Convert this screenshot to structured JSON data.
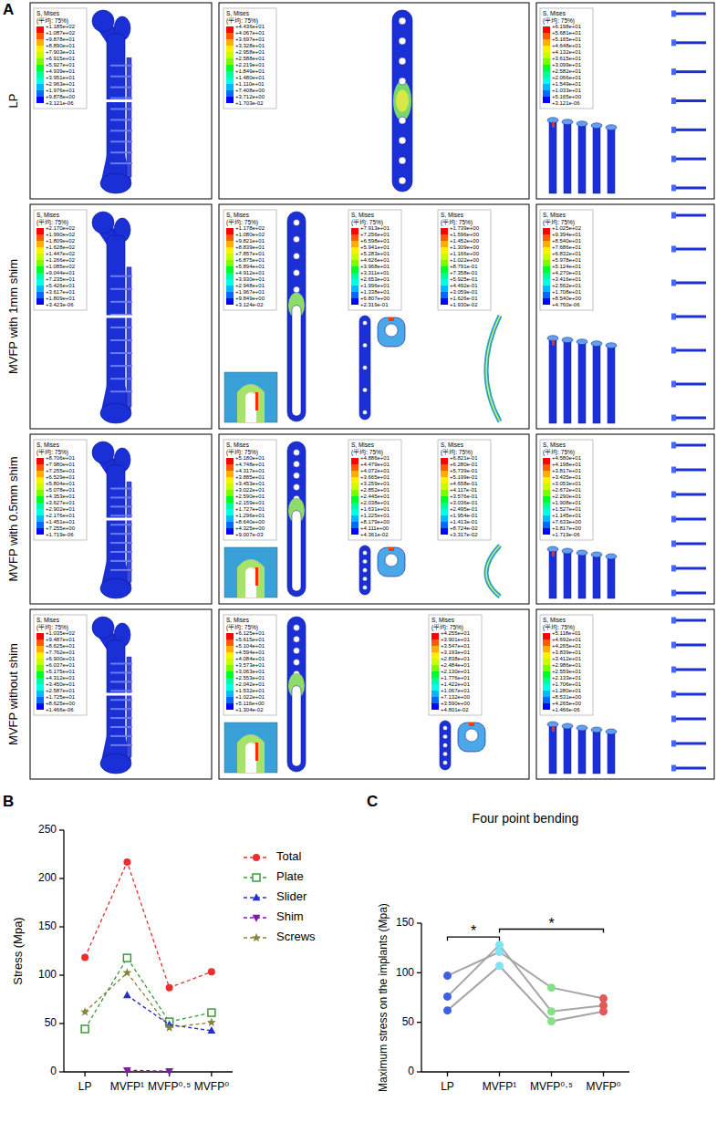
{
  "panel_a": {
    "letter": "A",
    "legend_title": "S, Mises",
    "legend_subtitle": "(平均: 75%)",
    "rows": [
      {
        "label": "LP",
        "femur_legend": [
          "+1.185e+02",
          "+1.087e+02",
          "+9.878e+01",
          "+8.890e+01",
          "+7.903e+01",
          "+6.915e+01",
          "+5.927e+01",
          "+4.939e+01",
          "+3.951e+01",
          "+2.963e+01",
          "+1.976e+01",
          "+9.878e+00",
          "+3.121e-06"
        ],
        "implant_legends": [
          [
            "+4.436e+01",
            "+4.067e+01",
            "+3.697e+01",
            "+3.328e+01",
            "+2.958e+01",
            "+2.588e+01",
            "+2.219e+01",
            "+1.849e+01",
            "+1.480e+01",
            "+1.110e+01",
            "+7.408e+00",
            "+3.712e+00",
            "+1.703e-02"
          ]
        ],
        "screw_legend": [
          "+6.198e+01",
          "+5.681e+01",
          "+5.165e+01",
          "+4.648e+01",
          "+4.132e+01",
          "+3.615e+01",
          "+3.099e+01",
          "+2.582e+01",
          "+2.066e+01",
          "+1.549e+01",
          "+1.033e+01",
          "+5.165e+00",
          "+3.121e-06"
        ]
      },
      {
        "label": "MVFP with 1mm shim",
        "femur_legend": [
          "+2.170e+02",
          "+1.990e+02",
          "+1.809e+02",
          "+1.628e+02",
          "+1.447e+02",
          "+1.266e+02",
          "+1.085e+02",
          "+9.044e+01",
          "+7.235e+01",
          "+5.426e+01",
          "+3.617e+01",
          "+1.809e+01",
          "+3.423e-06"
        ],
        "implant_legends": [
          [
            "+1.178e+02",
            "+1.080e+02",
            "+9.821e+01",
            "+8.839e+01",
            "+7.857e+01",
            "+6.875e+01",
            "+5.894e+01",
            "+4.912e+01",
            "+3.930e+01",
            "+2.948e+01",
            "+1.967e+01",
            "+9.849e+00",
            "+3.124e-02"
          ],
          [
            "+7.913e+01",
            "+7.256e+01",
            "+6.598e+01",
            "+5.941e+01",
            "+5.283e+01",
            "+4.626e+01",
            "+3.968e+01",
            "+3.311e+01",
            "+2.653e+01",
            "+1.996e+01",
            "+1.338e+01",
            "+6.807e+00",
            "+2.319e-01"
          ],
          [
            "+1.739e+00",
            "+1.596e+00",
            "+1.452e+00",
            "+1.309e+00",
            "+1.166e+00",
            "+1.022e+00",
            "+8.791e-01",
            "+7.358e-01",
            "+5.925e-01",
            "+4.492e-01",
            "+3.059e-01",
            "+1.626e-01",
            "+1.930e-02"
          ]
        ],
        "screw_legend": [
          "+1.025e+02",
          "+9.394e+01",
          "+8.540e+01",
          "+7.686e+01",
          "+6.832e+01",
          "+5.978e+01",
          "+5.124e+01",
          "+4.270e+01",
          "+3.416e+01",
          "+2.562e+01",
          "+1.708e+01",
          "+8.540e+00",
          "+4.760e-06"
        ]
      },
      {
        "label": "MVFP with 0.5mm shim",
        "femur_legend": [
          "+8.706e+01",
          "+7.980e+01",
          "+7.255e+01",
          "+6.529e+01",
          "+5.804e+01",
          "+5.078e+01",
          "+4.353e+01",
          "+3.627e+01",
          "+2.902e+01",
          "+2.176e+01",
          "+1.451e+01",
          "+7.255e+00",
          "+1.719e-06"
        ],
        "implant_legends": [
          [
            "+5.180e+01",
            "+4.748e+01",
            "+4.317e+01",
            "+3.885e+01",
            "+3.453e+01",
            "+3.022e+01",
            "+2.590e+01",
            "+2.159e+01",
            "+1.727e+01",
            "+1.296e+01",
            "+8.640e+00",
            "+4.325e+00",
            "+9.007e-03"
          ],
          [
            "+4.886e+01",
            "+4.479e+01",
            "+4.072e+01",
            "+3.665e+01",
            "+3.259e+01",
            "+2.852e+01",
            "+2.445e+01",
            "+2.038e+01",
            "+1.631e+01",
            "+1.225e+01",
            "+8.179e+00",
            "+4.111e+00",
            "+4.361e-02"
          ],
          [
            "+6.821e-01",
            "+6.280e-01",
            "+5.739e-01",
            "+5.199e-01",
            "+4.658e-01",
            "+4.117e-01",
            "+3.576e-01",
            "+3.036e-01",
            "+2.495e-01",
            "+1.954e-01",
            "+1.413e-01",
            "+8.724e-02",
            "+3.317e-02"
          ]
        ],
        "screw_legend": [
          "+4.580e+01",
          "+4.198e+01",
          "+3.817e+01",
          "+3.435e+01",
          "+3.053e+01",
          "+2.672e+01",
          "+2.290e+01",
          "+1.908e+01",
          "+1.527e+01",
          "+1.145e+01",
          "+7.633e+00",
          "+3.817e+00",
          "+1.719e-06"
        ]
      },
      {
        "label": "MVFP without shim",
        "femur_legend": [
          "+1.035e+02",
          "+9.487e+01",
          "+8.625e+01",
          "+7.762e+01",
          "+6.900e+01",
          "+6.037e+01",
          "+5.175e+01",
          "+4.312e+01",
          "+3.450e+01",
          "+2.587e+01",
          "+1.725e+01",
          "+8.625e+00",
          "+1.466e-06"
        ],
        "implant_legends": [
          [
            "+6.125e+01",
            "+5.615e+01",
            "+5.104e+01",
            "+4.594e+01",
            "+4.084e+01",
            "+3.573e+01",
            "+3.063e+01",
            "+2.553e+01",
            "+2.042e+01",
            "+1.532e+01",
            "+1.022e+01",
            "+5.116e+00",
            "+1.304e-02"
          ],
          [
            "+4.255e+01",
            "+3.901e+01",
            "+3.547e+01",
            "+3.193e+01",
            "+2.838e+01",
            "+2.484e+01",
            "+2.130e+01",
            "+1.776e+01",
            "+1.422e+01",
            "+1.067e+01",
            "+7.132e+00",
            "+3.590e+00",
            "+4.801e-02"
          ]
        ],
        "screw_legend": [
          "+5.118e+01",
          "+4.692e+01",
          "+4.265e+01",
          "+3.839e+01",
          "+3.412e+01",
          "+2.986e+01",
          "+2.559e+01",
          "+2.133e+01",
          "+1.706e+01",
          "+1.280e+01",
          "+8.531e+00",
          "+4.265e+00",
          "+1.466e-06"
        ]
      }
    ]
  },
  "chart_data": [
    {
      "panel_letter": "B",
      "type": "line",
      "y_label": "Stress (Mpa)",
      "categories": [
        "LP",
        "MVFP¹",
        "MVFP⁰·⁵",
        "MVFP⁰"
      ],
      "ylim": [
        0,
        250
      ],
      "yticks": [
        0,
        50,
        100,
        150,
        200,
        250
      ],
      "legend": "right",
      "line_style": "dashed",
      "series": [
        {
          "name": "Total",
          "color": "#e8312f",
          "marker": "circle",
          "values": [
            118.5,
            217,
            87.06,
            103.5
          ]
        },
        {
          "name": "Plate",
          "color": "#3b9a3b",
          "marker": "square-open",
          "values": [
            44.36,
            117.8,
            51.8,
            61.25
          ]
        },
        {
          "name": "Slider",
          "color": "#2430c8",
          "marker": "triangle",
          "values": [
            null,
            79.13,
            48.86,
            42.55
          ]
        },
        {
          "name": "Shim",
          "color": "#7b1fa2",
          "marker": "triangle-down",
          "values": [
            null,
            1.739,
            0.682,
            null
          ]
        },
        {
          "name": "Screws",
          "color": "#85853a",
          "marker": "star",
          "values": [
            61.98,
            102.5,
            45.8,
            51.18
          ]
        }
      ]
    },
    {
      "panel_letter": "C",
      "type": "line",
      "title": "Four point bending",
      "y_label": "Maximum stress on the implants (Mpa)",
      "categories": [
        "LP",
        "MVFP¹",
        "MVFP⁰·⁵",
        "MVFP⁰"
      ],
      "ylim": [
        0,
        150
      ],
      "yticks": [
        0,
        50,
        100,
        150
      ],
      "marker": "circle",
      "line_style": "solid",
      "colors": [
        "#4160e0",
        "#7fe3f2",
        "#86e086",
        "#e05a5a"
      ],
      "series": [
        {
          "color": "#a6a6a6",
          "values": [
            97,
            121,
            85,
            74
          ]
        },
        {
          "color": "#a6a6a6",
          "values": [
            76,
            128,
            61,
            67
          ]
        },
        {
          "color": "#a6a6a6",
          "values": [
            62,
            107,
            51,
            61
          ]
        }
      ],
      "annotations": [
        {
          "from": 0,
          "to": 1,
          "y": 136,
          "text": "*"
        },
        {
          "from": 1,
          "to": 3,
          "y": 144,
          "text": "*"
        }
      ]
    }
  ]
}
